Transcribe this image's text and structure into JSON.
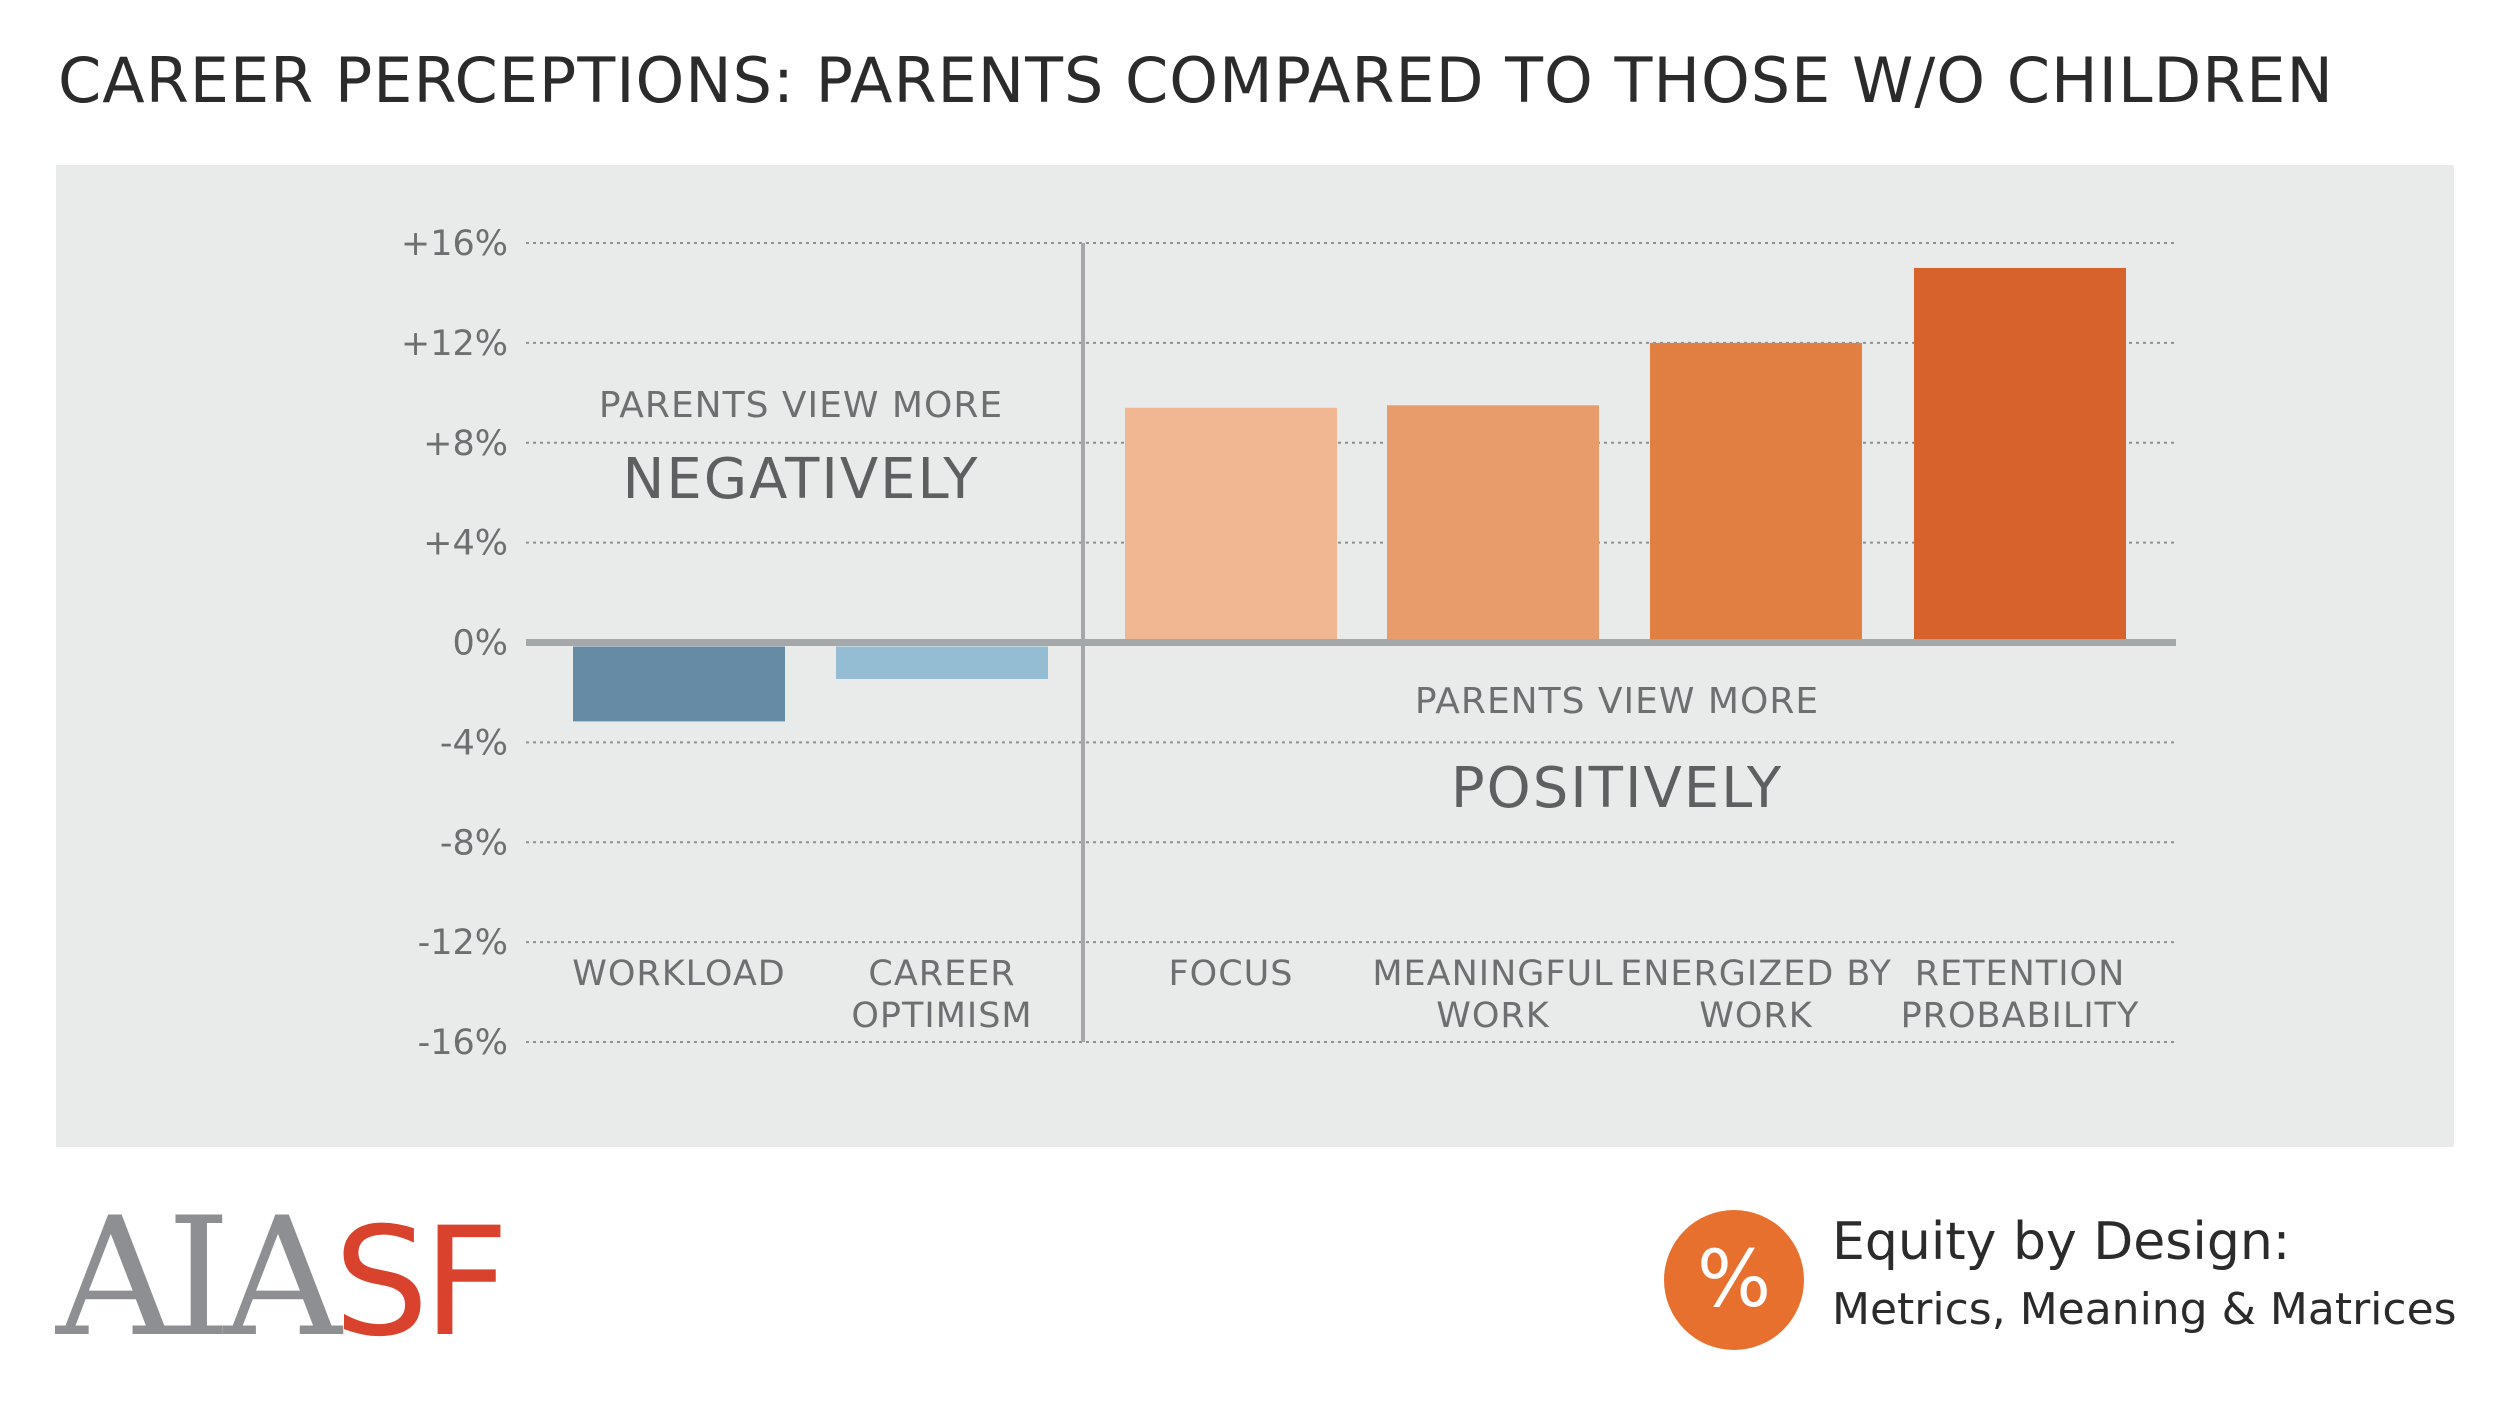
{
  "title": "CAREER PERCEPTIONS: PARENTS COMPARED TO THOSE W/O CHILDREN",
  "chart_data": {
    "type": "bar",
    "title": "CAREER PERCEPTIONS: PARENTS COMPARED TO THOSE W/O CHILDREN",
    "xlabel": "",
    "ylabel": "",
    "ylim": [
      -16,
      16
    ],
    "grid": true,
    "yticks": [
      16,
      12,
      8,
      4,
      0,
      -4,
      -8,
      -12,
      -16
    ],
    "ytick_labels": [
      "+16%",
      "+12%",
      "+8%",
      "+4%",
      "0%",
      "-4%",
      "-8%",
      "-12%",
      "-16%"
    ],
    "categories": [
      [
        "WORKLOAD"
      ],
      [
        "CAREER",
        "OPTIMISM"
      ],
      [
        "FOCUS"
      ],
      [
        "MEANINGFUL",
        "WORK"
      ],
      [
        "ENERGIZED BY",
        "WORK"
      ],
      [
        "RETENTION",
        "PROBABILITY"
      ]
    ],
    "values": [
      -3.0,
      -1.3,
      9.4,
      9.5,
      12.0,
      15.0
    ],
    "colors": [
      "#668ba5",
      "#94bcd3",
      "#f1b692",
      "#e89c6c",
      "#e07f41",
      "#d8622b"
    ],
    "annotations": {
      "negative_small": "PARENTS VIEW MORE",
      "negative_big": "NEGATIVELY",
      "positive_small": "PARENTS VIEW MORE",
      "positive_big": "POSITIVELY"
    }
  },
  "footer": {
    "logo_left": "AIA",
    "logo_right": "SF",
    "badge_symbol": "%",
    "brand_title": "Equity by Design:",
    "brand_subtitle": "Metrics, Meaning & Matrices"
  },
  "colors": {
    "panel_bg": "#e9ebea",
    "grid": "#8e9092",
    "axis": "#a5a8aa",
    "accent": "#e8702f",
    "logo_red": "#d9432e",
    "logo_gray": "#8d8f92"
  }
}
